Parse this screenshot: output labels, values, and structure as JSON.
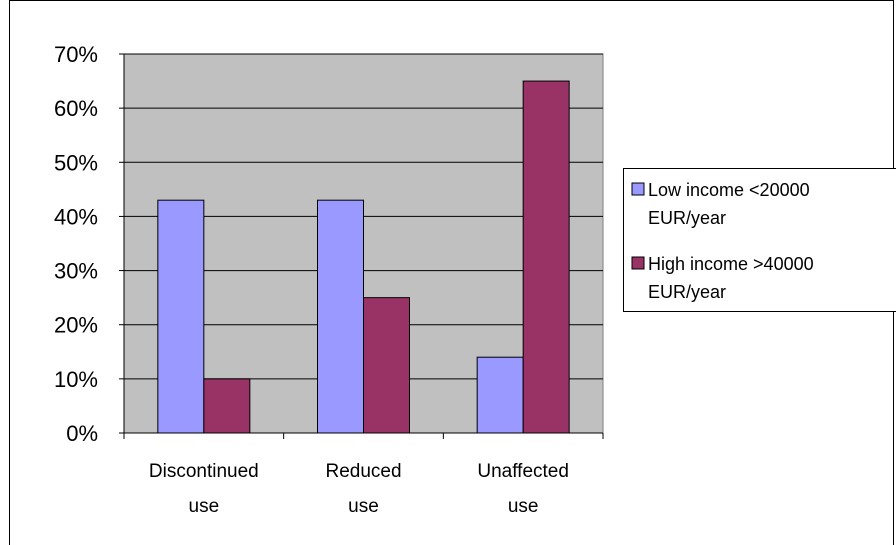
{
  "chart_data": {
    "type": "bar",
    "categories": [
      [
        "Discontinued",
        "use"
      ],
      [
        "Reduced",
        "use"
      ],
      [
        "Unaffected",
        "use"
      ]
    ],
    "series": [
      {
        "name": "Low income <20000 EUR/year",
        "name_lines": [
          "Low income <20000",
          "EUR/year"
        ],
        "values": [
          43,
          43,
          14
        ]
      },
      {
        "name": "High income >40000 EUR/year",
        "name_lines": [
          "High income >40000",
          "EUR/year"
        ],
        "values": [
          10,
          25,
          65
        ]
      }
    ],
    "ylim": [
      0,
      70
    ],
    "yticks": [
      "0%",
      "10%",
      "20%",
      "30%",
      "40%",
      "50%",
      "60%",
      "70%"
    ],
    "grid": true,
    "legend": "right",
    "colors": {
      "plot_bg": "#C0C0C0",
      "series": [
        "#9999FF",
        "#993366"
      ],
      "gridline": "#000000"
    }
  }
}
